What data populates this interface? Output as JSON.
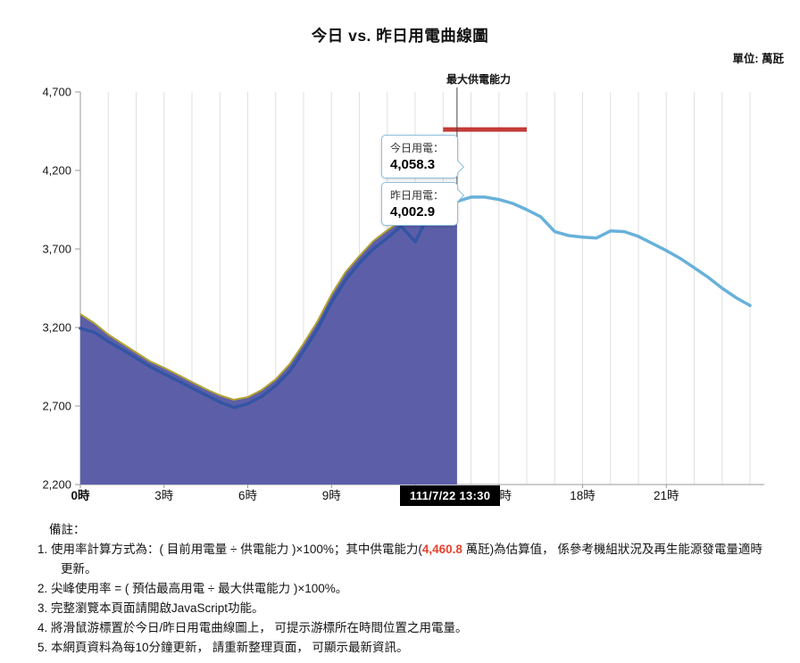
{
  "page": {
    "title": "今日 vs. 昨日用電曲線圖",
    "unit_label": "單位: 萬瓩"
  },
  "colors": {
    "note_highlight": "#e8432f",
    "today_fill": "#5c5fa8",
    "today_line": "#b3a233",
    "yesterday_dark": "#3454a4",
    "yesterday_light": "#68b1da",
    "capacity_red": "#c23b38"
  },
  "chart_data": {
    "type": "area",
    "title": "今日 vs. 昨日用電曲線圖",
    "unit": "萬瓩",
    "x_axis": {
      "min": 0,
      "max": 24,
      "tick_hours": [
        0,
        3,
        6,
        9,
        12,
        15,
        18,
        21
      ],
      "tick_suffix": "時"
    },
    "y_axis": {
      "min": 2200,
      "max": 4700,
      "ticks": [
        4700,
        4200,
        3700,
        3200,
        2700,
        2200
      ]
    },
    "grid": "vertical-hour-lines",
    "legend": "none",
    "capacity_line": {
      "label": "最大供電能力",
      "value": 4460.8,
      "span_hours": [
        13,
        16
      ],
      "color": "#c23b38"
    },
    "cursor": {
      "hour": 13.5,
      "datetime_label": "111/7/22 13:30",
      "today_label": "今日用電：",
      "today_value": "4,058.3",
      "yesterday_label": "昨日用電：",
      "yesterday_value": "4,002.9"
    },
    "series": [
      {
        "name": "今日用電",
        "kind": "area",
        "line_color": "#b3a233",
        "fill_color": "#5c5fa8",
        "start_hour": 0,
        "step_hours": 0.5,
        "values": [
          3285,
          3228,
          3155,
          3098,
          3041,
          2984,
          2944,
          2899,
          2853,
          2808,
          2768,
          2740,
          2757,
          2802,
          2870,
          2967,
          3098,
          3240,
          3410,
          3552,
          3655,
          3751,
          3820,
          3876,
          3910,
          3939,
          3985,
          4058.3
        ]
      },
      {
        "name": "昨日用電",
        "kind": "line",
        "color_before_split": "#3454a4",
        "color_after_split": "#68b1da",
        "split_hour": 13.5,
        "start_hour": 0,
        "step_hours": 0.5,
        "values": [
          3195,
          3170,
          3110,
          3060,
          3005,
          2950,
          2905,
          2860,
          2815,
          2770,
          2725,
          2690,
          2715,
          2760,
          2830,
          2920,
          3050,
          3190,
          3360,
          3500,
          3610,
          3700,
          3770,
          3845,
          3745,
          3920,
          3990,
          4002.9,
          4030,
          4030,
          4015,
          3990,
          3950,
          3905,
          3810,
          3785,
          3775,
          3770,
          3815,
          3810,
          3780,
          3735,
          3690,
          3640,
          3580,
          3520,
          3450,
          3390,
          3340
        ]
      }
    ]
  },
  "notes": {
    "heading": "備註：",
    "items": [
      {
        "num": "1.",
        "pre": "使用率計算方式為：( 目前用電量 ÷ 供電能力 )×100%；其中供電能力(",
        "highlight": "4,460.8",
        "post": " 萬瓩)為估算值， 係參考機組狀況及再生能源發電量適時更新。"
      },
      {
        "num": "2.",
        "text": "尖峰使用率 = ( 預估最高用電 ÷ 最大供電能力 )×100%。"
      },
      {
        "num": "3.",
        "text": "完整瀏覽本頁面請開啟JavaScript功能。"
      },
      {
        "num": "4.",
        "text": "將滑鼠游標置於今日/昨日用電曲線圖上， 可提示游標所在時間位置之用電量。"
      },
      {
        "num": "5.",
        "text": "本網頁資料為每10分鐘更新， 請重新整理頁面， 可顯示最新資訊。"
      }
    ]
  }
}
